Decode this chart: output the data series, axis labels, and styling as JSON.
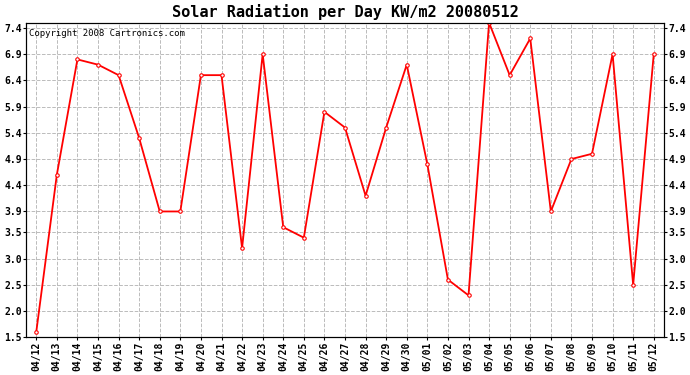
{
  "title": "Solar Radiation per Day KW/m2 20080512",
  "copyright": "Copyright 2008 Cartronics.com",
  "labels": [
    "04/12",
    "04/13",
    "04/14",
    "04/15",
    "04/16",
    "04/17",
    "04/18",
    "04/19",
    "04/20",
    "04/21",
    "04/22",
    "04/23",
    "04/24",
    "04/25",
    "04/26",
    "04/27",
    "04/28",
    "04/29",
    "04/30",
    "05/01",
    "05/02",
    "05/03",
    "05/04",
    "05/05",
    "05/06",
    "05/07",
    "05/08",
    "05/09",
    "05/10",
    "05/11",
    "05/12"
  ],
  "values": [
    1.6,
    4.6,
    6.8,
    6.7,
    6.5,
    5.3,
    3.9,
    3.9,
    6.5,
    6.5,
    3.2,
    6.9,
    3.6,
    3.4,
    5.8,
    5.5,
    4.2,
    5.5,
    6.7,
    4.8,
    2.6,
    2.3,
    7.5,
    6.5,
    7.2,
    3.9,
    4.9,
    5.0,
    6.9,
    2.5,
    6.9
  ],
  "ylim": [
    1.5,
    7.5
  ],
  "yticks": [
    1.5,
    2.0,
    2.5,
    3.0,
    3.5,
    3.9,
    4.4,
    4.9,
    5.4,
    5.9,
    6.4,
    6.9,
    7.4
  ],
  "line_color": "red",
  "marker": "o",
  "marker_size": 2.5,
  "line_width": 1.3,
  "bg_color": "#ffffff",
  "grid_color": "#bbbbbb",
  "title_fontsize": 11,
  "copyright_fontsize": 6.5,
  "tick_fontsize": 7,
  "figwidth": 6.9,
  "figheight": 3.75,
  "dpi": 100
}
